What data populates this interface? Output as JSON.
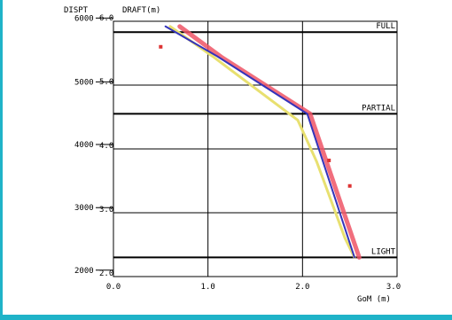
{
  "colors": {
    "frame_border": "#1fb3c8",
    "grid": "#000000",
    "blue_curve": "#3333bb",
    "red_curve": "#ee5566",
    "yellow_curve": "#e8e070",
    "red_points": "#dd3333"
  },
  "chart_data": {
    "type": "line",
    "title": "",
    "xlabel": "GoM (m)",
    "ylabel_left": "DISPT",
    "ylabel_right": "DRAFT(m)",
    "xlim": [
      0.0,
      3.0
    ],
    "ylim_draft": [
      2.0,
      6.0
    ],
    "x_ticks": [
      "0.0",
      "1.0",
      "2.0",
      "3.0"
    ],
    "draft_ticks": [
      "2.0",
      "3.0",
      "4.0",
      "5.0",
      "6.0"
    ],
    "dispt_ticks": [
      "2000",
      "3000",
      "4000",
      "5000",
      "6000"
    ],
    "dispt_tick_drafts": [
      2.1,
      3.08,
      4.07,
      5.05,
      6.05
    ],
    "grid": true,
    "reference_lines": [
      {
        "label": "FULL",
        "draft": 5.83
      },
      {
        "label": "PARTIAL",
        "draft": 4.55
      },
      {
        "label": "LIGHT",
        "draft": 2.3
      }
    ],
    "series": [
      {
        "color": "blue",
        "points": [
          [
            0.55,
            5.92
          ],
          [
            1.1,
            5.45
          ],
          [
            2.05,
            4.55
          ],
          [
            2.55,
            2.3
          ]
        ]
      },
      {
        "color": "red",
        "points": [
          [
            0.7,
            5.92
          ],
          [
            1.15,
            5.43
          ],
          [
            2.08,
            4.55
          ],
          [
            2.6,
            2.3
          ]
        ]
      },
      {
        "color": "yellow",
        "points": [
          [
            0.6,
            5.92
          ],
          [
            1.05,
            5.45
          ],
          [
            1.95,
            4.45
          ],
          [
            2.15,
            3.8
          ],
          [
            2.45,
            2.6
          ],
          [
            2.55,
            2.3
          ]
        ]
      }
    ],
    "scatter_points": [
      {
        "x": 0.5,
        "y": 5.6
      },
      {
        "x": 2.28,
        "y": 3.82
      },
      {
        "x": 2.5,
        "y": 3.42
      }
    ]
  }
}
